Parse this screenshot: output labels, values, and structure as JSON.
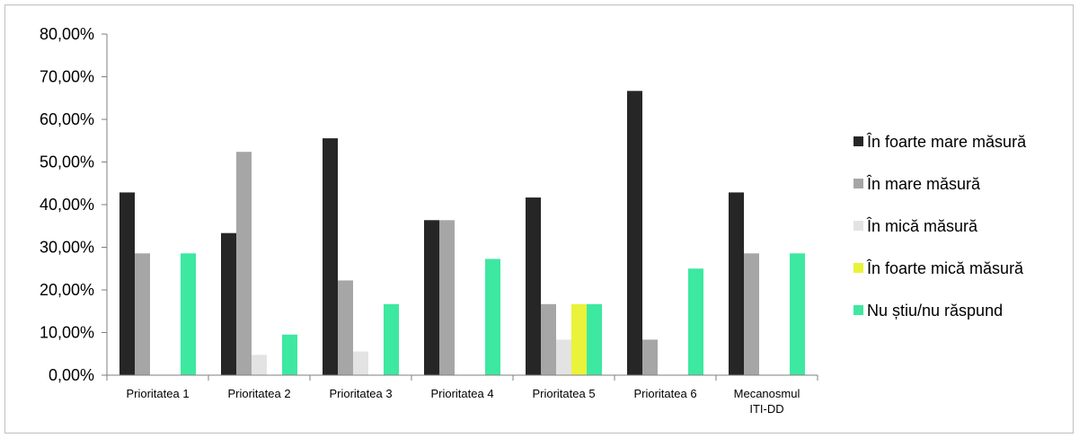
{
  "chart_data": {
    "type": "bar",
    "categories": [
      [
        "Prioritatea 1"
      ],
      [
        "Prioritatea 2"
      ],
      [
        "Prioritatea 3"
      ],
      [
        "Prioritatea 4"
      ],
      [
        "Prioritatea 5"
      ],
      [
        "Prioritatea 6"
      ],
      [
        "Mecanosmul",
        "ITI-DD"
      ]
    ],
    "series": [
      {
        "name": "În foarte mare măsură",
        "color": "#262626",
        "values": [
          42.86,
          33.33,
          55.56,
          36.36,
          41.67,
          66.67,
          42.86
        ]
      },
      {
        "name": "În mare măsură",
        "color": "#a6a6a6",
        "values": [
          28.57,
          52.38,
          22.22,
          36.36,
          16.67,
          8.33,
          28.57
        ]
      },
      {
        "name": "În mică măsură",
        "color": "#e3e3e3",
        "values": [
          0,
          4.76,
          5.56,
          0,
          8.33,
          0,
          0
        ]
      },
      {
        "name": "În foarte mică măsură",
        "color": "#eaf23a",
        "values": [
          0,
          0,
          0,
          0,
          16.67,
          0,
          0
        ]
      },
      {
        "name": "Nu știu/nu răspund",
        "color": "#3de8a0",
        "values": [
          28.57,
          9.52,
          16.67,
          27.27,
          16.67,
          25.0,
          28.57
        ]
      }
    ],
    "y_ticks": [
      "0,00%",
      "10,00%",
      "20,00%",
      "30,00%",
      "40,00%",
      "50,00%",
      "60,00%",
      "70,00%",
      "80,00%"
    ],
    "ylim": [
      0,
      80
    ],
    "title": "",
    "xlabel": "",
    "ylabel": "",
    "legend_position": "right",
    "grid": false
  }
}
